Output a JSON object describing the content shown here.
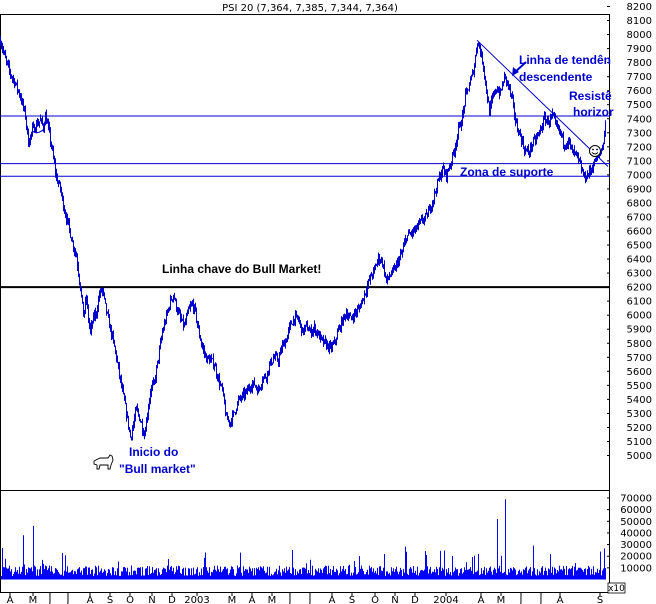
{
  "chart_data": {
    "type": "line",
    "title": "PSI 20 (7,364, 7,385, 7,344, 7,364)",
    "price_axis": {
      "ylim": [
        5000,
        8200
      ],
      "tick_labels": [
        "5000",
        "5100",
        "5200",
        "5300",
        "5400",
        "5500",
        "5600",
        "5700",
        "5800",
        "5900",
        "6000",
        "6100",
        "6200",
        "6300",
        "6400",
        "6500",
        "6600",
        "6700",
        "6800",
        "6900",
        "7000",
        "7100",
        "7200",
        "7300",
        "7400",
        "7500",
        "7600",
        "7700",
        "7800",
        "7900",
        "8000",
        "8100",
        "8200"
      ]
    },
    "volume_axis": {
      "ylim": [
        0,
        70000
      ],
      "tick_labels": [
        "10000",
        "20000",
        "30000",
        "40000",
        "50000",
        "60000",
        "70000"
      ],
      "multiplier_label": "x10"
    },
    "x_axis": {
      "tick_labels": [
        "A",
        "M",
        "J",
        "J",
        "A",
        "S",
        "O",
        "N",
        "D",
        "2003",
        "M",
        "A",
        "M",
        "J",
        "J",
        "A",
        "S",
        "O",
        "N",
        "D",
        "2004",
        "A",
        "M",
        "J",
        "J",
        "A",
        "S"
      ]
    },
    "price_points": [
      [
        0,
        7960
      ],
      [
        5,
        7820
      ],
      [
        10,
        7720
      ],
      [
        15,
        7650
      ],
      [
        20,
        7560
      ],
      [
        25,
        7420
      ],
      [
        28,
        7230
      ],
      [
        32,
        7320
      ],
      [
        36,
        7360
      ],
      [
        40,
        7390
      ],
      [
        43,
        7340
      ],
      [
        45,
        7420
      ],
      [
        48,
        7330
      ],
      [
        52,
        7160
      ],
      [
        56,
        6980
      ],
      [
        60,
        6900
      ],
      [
        64,
        6750
      ],
      [
        68,
        6640
      ],
      [
        72,
        6520
      ],
      [
        76,
        6420
      ],
      [
        80,
        6200
      ],
      [
        83,
        6000
      ],
      [
        86,
        6120
      ],
      [
        88,
        5970
      ],
      [
        90,
        5880
      ],
      [
        93,
        5980
      ],
      [
        96,
        6020
      ],
      [
        99,
        6150
      ],
      [
        102,
        6180
      ],
      [
        105,
        6060
      ],
      [
        108,
        5960
      ],
      [
        112,
        5840
      ],
      [
        116,
        5700
      ],
      [
        120,
        5530
      ],
      [
        124,
        5380
      ],
      [
        127,
        5260
      ],
      [
        130,
        5130
      ],
      [
        133,
        5220
      ],
      [
        136,
        5330
      ],
      [
        140,
        5250
      ],
      [
        144,
        5150
      ],
      [
        147,
        5300
      ],
      [
        150,
        5460
      ],
      [
        154,
        5520
      ],
      [
        158,
        5700
      ],
      [
        162,
        5880
      ],
      [
        166,
        5990
      ],
      [
        170,
        6100
      ],
      [
        173,
        6150
      ],
      [
        176,
        6060
      ],
      [
        180,
        5970
      ],
      [
        184,
        5920
      ],
      [
        188,
        6030
      ],
      [
        192,
        6080
      ],
      [
        195,
        6020
      ],
      [
        198,
        5890
      ],
      [
        202,
        5770
      ],
      [
        206,
        5690
      ],
      [
        210,
        5680
      ],
      [
        214,
        5650
      ],
      [
        218,
        5540
      ],
      [
        222,
        5460
      ],
      [
        226,
        5260
      ],
      [
        230,
        5240
      ],
      [
        234,
        5310
      ],
      [
        238,
        5390
      ],
      [
        242,
        5420
      ],
      [
        246,
        5450
      ],
      [
        250,
        5500
      ],
      [
        254,
        5510
      ],
      [
        258,
        5460
      ],
      [
        262,
        5550
      ],
      [
        266,
        5570
      ],
      [
        270,
        5660
      ],
      [
        274,
        5700
      ],
      [
        278,
        5680
      ],
      [
        282,
        5780
      ],
      [
        286,
        5830
      ],
      [
        290,
        5930
      ],
      [
        294,
        5980
      ],
      [
        298,
        5970
      ],
      [
        302,
        5880
      ],
      [
        306,
        5920
      ],
      [
        310,
        5880
      ],
      [
        314,
        5910
      ],
      [
        318,
        5860
      ],
      [
        322,
        5810
      ],
      [
        326,
        5790
      ],
      [
        330,
        5760
      ],
      [
        334,
        5800
      ],
      [
        338,
        5890
      ],
      [
        342,
        5960
      ],
      [
        346,
        6020
      ],
      [
        350,
        5970
      ],
      [
        354,
        6010
      ],
      [
        358,
        6040
      ],
      [
        362,
        6110
      ],
      [
        366,
        6190
      ],
      [
        370,
        6270
      ],
      [
        374,
        6320
      ],
      [
        378,
        6410
      ],
      [
        382,
        6380
      ],
      [
        386,
        6240
      ],
      [
        390,
        6290
      ],
      [
        394,
        6320
      ],
      [
        398,
        6390
      ],
      [
        402,
        6450
      ],
      [
        406,
        6560
      ],
      [
        410,
        6580
      ],
      [
        414,
        6600
      ],
      [
        418,
        6640
      ],
      [
        422,
        6680
      ],
      [
        426,
        6700
      ],
      [
        430,
        6770
      ],
      [
        434,
        6860
      ],
      [
        438,
        6960
      ],
      [
        442,
        7040
      ],
      [
        446,
        7000
      ],
      [
        450,
        7080
      ],
      [
        454,
        7180
      ],
      [
        458,
        7320
      ],
      [
        462,
        7410
      ],
      [
        465,
        7560
      ],
      [
        468,
        7620
      ],
      [
        471,
        7690
      ],
      [
        474,
        7780
      ],
      [
        477,
        7960
      ],
      [
        480,
        7880
      ],
      [
        483,
        7780
      ],
      [
        486,
        7600
      ],
      [
        489,
        7450
      ],
      [
        492,
        7540
      ],
      [
        496,
        7620
      ],
      [
        500,
        7580
      ],
      [
        504,
        7700
      ],
      [
        508,
        7640
      ],
      [
        512,
        7520
      ],
      [
        516,
        7350
      ],
      [
        520,
        7280
      ],
      [
        524,
        7180
      ],
      [
        528,
        7160
      ],
      [
        532,
        7220
      ],
      [
        536,
        7260
      ],
      [
        540,
        7320
      ],
      [
        544,
        7400
      ],
      [
        548,
        7380
      ],
      [
        552,
        7420
      ],
      [
        556,
        7340
      ],
      [
        560,
        7300
      ],
      [
        564,
        7220
      ],
      [
        568,
        7240
      ],
      [
        572,
        7160
      ],
      [
        576,
        7140
      ],
      [
        580,
        7060
      ],
      [
        584,
        6980
      ],
      [
        587,
        7000
      ],
      [
        590,
        7030
      ],
      [
        594,
        7090
      ],
      [
        598,
        7140
      ],
      [
        602,
        7190
      ],
      [
        605,
        7364
      ]
    ],
    "volume_max": 70000,
    "annotations": {
      "bull_line_label": "Linha chave do Bull Market!",
      "support_label": "Zona de suporte",
      "trendline_label_1": "Linha de tendên",
      "trendline_label_2": "descendente",
      "resistance_label_1": "Resistê",
      "resistance_label_2": "horizor",
      "bull_start_label_1": "Inicio do",
      "bull_start_label_2": "\"Bull market\""
    },
    "levels": {
      "bull_line": 6200,
      "resistance": 7420,
      "support_top": 7080,
      "support_bottom": 6990
    },
    "trendline": {
      "from": [
        477,
        7960
      ],
      "to": [
        608,
        7060
      ]
    },
    "colors": {
      "price": "#0000cc",
      "volume": "#0000ff",
      "support_lines": "#0000cc",
      "bull_line": "#000000",
      "annotation_blue": "#0000cc",
      "annotation_black": "#000000",
      "frame": "#000000"
    },
    "icons": [
      "bull-icon",
      "smiley-icon"
    ]
  }
}
